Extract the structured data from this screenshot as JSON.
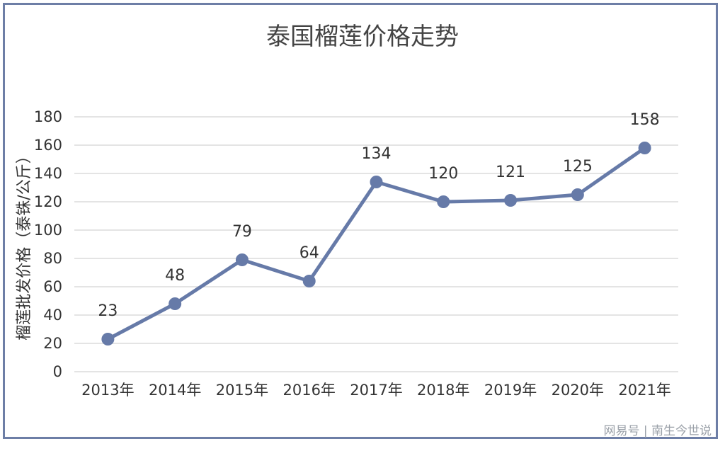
{
  "chart_data": {
    "type": "line",
    "title": "泰国榴莲价格走势",
    "xlabel": "",
    "ylabel": "榴莲批发价格（泰铢/公斤）",
    "categories": [
      "2013年",
      "2014年",
      "2015年",
      "2016年",
      "2017年",
      "2018年",
      "2019年",
      "2020年",
      "2021年"
    ],
    "series": [
      {
        "values": [
          23,
          48,
          79,
          64,
          134,
          120,
          121,
          125,
          158
        ]
      }
    ],
    "ylim": [
      0,
      180
    ],
    "yticks": [
      0,
      20,
      40,
      60,
      80,
      100,
      120,
      140,
      160,
      180
    ],
    "grid": true,
    "data_labels": true,
    "colors": {
      "line": "#667aa8",
      "marker": "#667aa8"
    }
  },
  "watermark": "网易号 | 南生今世说"
}
